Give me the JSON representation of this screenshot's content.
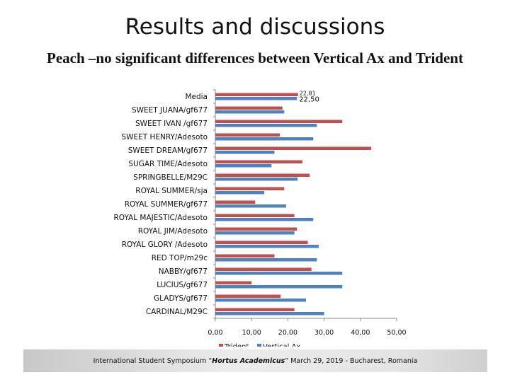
{
  "slide": {
    "title": "Results and discussions",
    "subtitle": "Peach –no significant differences between Vertical Ax and Trident"
  },
  "footer": {
    "part1": "International Student Symposium “",
    "event": "Hortus Academicus",
    "part2": "” March 29, 2019 - Bucharest, Romania"
  },
  "colors": {
    "trident": "#c0504d",
    "vertical_ax": "#4f81bd"
  },
  "chart_data": {
    "type": "bar",
    "orientation": "horizontal",
    "categories": [
      "Media",
      "SWEET JUANA/gf677",
      "SWEET IVAN /gf677",
      "SWEET HENRY/Adesoto",
      "SWEET DREAM/gf677",
      "SUGAR TIME/Adesoto",
      "SPRINGBELLE/M29C",
      "ROYAL SUMMER/sja",
      "ROYAL SUMMER/gf677",
      "ROYAL MAJESTIC/Adesoto",
      "ROYAL JIM/Adesoto",
      "ROYAL GLORY /Adesoto",
      "RED TOP/m29c",
      "NABBY/gf677",
      "LUCIUS/gf677",
      "GLADYS/gf677",
      "CARDINAL/M29C"
    ],
    "series": [
      {
        "name": "Trident",
        "values": [
          22.81,
          18.5,
          35.0,
          17.8,
          43.0,
          24.0,
          26.0,
          19.0,
          11.0,
          21.8,
          22.5,
          25.5,
          16.3,
          26.5,
          10.0,
          18.0,
          21.8
        ]
      },
      {
        "name": "Vertical Ax",
        "values": [
          22.5,
          19.0,
          28.0,
          27.0,
          16.3,
          15.5,
          22.7,
          13.5,
          19.5,
          27.0,
          21.8,
          28.5,
          28.0,
          35.0,
          35.0,
          25.0,
          30.0
        ]
      }
    ],
    "data_labels": [
      "22,81",
      "22,50"
    ],
    "xlim": [
      0,
      50
    ],
    "xticks": [
      0,
      10,
      20,
      30,
      40,
      50
    ],
    "xtick_labels": [
      "0,00",
      "10,00",
      "20,00",
      "30,00",
      "40,00",
      "50,00"
    ],
    "legend_position": "bottom",
    "grid": false
  }
}
